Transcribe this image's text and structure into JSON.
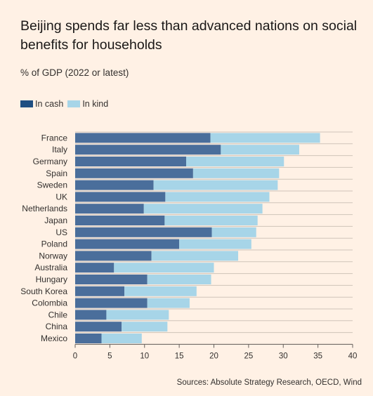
{
  "header": {
    "title": "Beijing spends far less than advanced nations on social benefits for households",
    "subtitle": "% of GDP (2022 or latest)"
  },
  "colors": {
    "in_cash": "#4a6e9b",
    "in_kind": "#a7d5e8",
    "legend_cash": "#1f4f82",
    "legend_kind": "#a7d5e8"
  },
  "source": "Sources: Absolute Strategy Research, OECD, Wind",
  "chart_data": {
    "type": "bar",
    "orientation": "horizontal",
    "stacked": true,
    "categories": [
      "France",
      "Italy",
      "Germany",
      "Spain",
      "Sweden",
      "UK",
      "Netherlands",
      "Japan",
      "US",
      "Poland",
      "Norway",
      "Australia",
      "Hungary",
      "South Korea",
      "Colombia",
      "Chile",
      "China",
      "Mexico"
    ],
    "series": [
      {
        "name": "In cash",
        "values": [
          19.5,
          21.0,
          16.0,
          17.0,
          11.3,
          13.0,
          9.9,
          12.9,
          19.7,
          15.0,
          11.0,
          5.6,
          10.4,
          7.1,
          10.4,
          4.5,
          6.7,
          3.8
        ]
      },
      {
        "name": "In kind",
        "values": [
          15.8,
          11.3,
          14.1,
          12.4,
          17.9,
          15.0,
          17.1,
          13.4,
          6.4,
          10.4,
          12.5,
          14.4,
          9.2,
          10.4,
          6.1,
          9.0,
          6.6,
          5.8
        ]
      }
    ],
    "xlim": [
      0,
      40
    ],
    "xticks": [
      "0",
      "5",
      "10",
      "15",
      "20",
      "25",
      "30",
      "35",
      "40"
    ],
    "grid": "horizontal",
    "legend_position": "top-left"
  }
}
